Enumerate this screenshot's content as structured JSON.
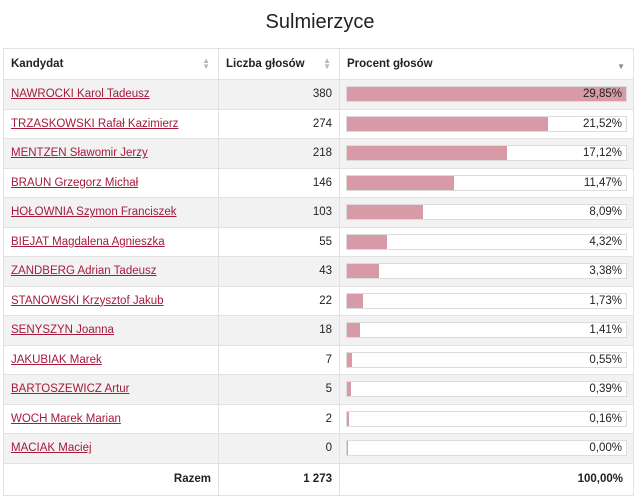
{
  "title": "Sulmierzyce",
  "columns": {
    "candidate": "Kandydat",
    "votes": "Liczba głosów",
    "percent": "Procent głosów"
  },
  "rows": [
    {
      "name": "NAWROCKI Karol Tadeusz",
      "votes": "380",
      "percent": "29,85%",
      "fraction": 0.2985
    },
    {
      "name": "TRZASKOWSKI Rafał Kazimierz",
      "votes": "274",
      "percent": "21,52%",
      "fraction": 0.2152
    },
    {
      "name": "MENTZEN Sławomir Jerzy",
      "votes": "218",
      "percent": "17,12%",
      "fraction": 0.1712
    },
    {
      "name": "BRAUN Grzegorz Michał",
      "votes": "146",
      "percent": "11,47%",
      "fraction": 0.1147
    },
    {
      "name": "HOŁOWNIA Szymon Franciszek",
      "votes": "103",
      "percent": "8,09%",
      "fraction": 0.0809
    },
    {
      "name": "BIEJAT Magdalena Agnieszka",
      "votes": "55",
      "percent": "4,32%",
      "fraction": 0.0432
    },
    {
      "name": "ZANDBERG Adrian Tadeusz",
      "votes": "43",
      "percent": "3,38%",
      "fraction": 0.0338
    },
    {
      "name": "STANOWSKI Krzysztof Jakub",
      "votes": "22",
      "percent": "1,73%",
      "fraction": 0.0173
    },
    {
      "name": "SENYSZYN Joanna",
      "votes": "18",
      "percent": "1,41%",
      "fraction": 0.0141
    },
    {
      "name": "JAKUBIAK Marek",
      "votes": "7",
      "percent": "0,55%",
      "fraction": 0.0055
    },
    {
      "name": "BARTOSZEWICZ Artur",
      "votes": "5",
      "percent": "0,39%",
      "fraction": 0.0039
    },
    {
      "name": "WOCH Marek Marian",
      "votes": "2",
      "percent": "0,16%",
      "fraction": 0.0016
    },
    {
      "name": "MACIAK Maciej",
      "votes": "0",
      "percent": "0,00%",
      "fraction": 0.0
    }
  ],
  "footer": {
    "label": "Razem",
    "votes": "1 273",
    "percent": "100,00%"
  },
  "bar_max_fraction": 0.2985,
  "colors": {
    "link": "#a61a3c",
    "bar": "#d99aa8",
    "row_alt": "#f2f2f2"
  }
}
